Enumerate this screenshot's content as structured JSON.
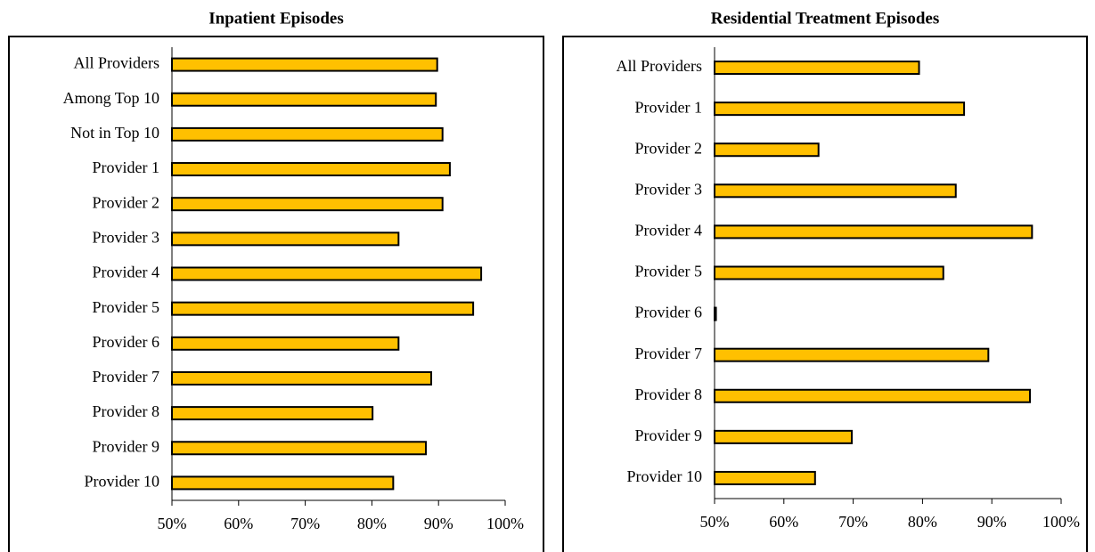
{
  "chart_data": [
    {
      "type": "bar",
      "title": "Inpatient Episodes",
      "categories": [
        "All Providers",
        "Among Top 10",
        "Not in Top 10",
        "Provider 1",
        "Provider 2",
        "Provider 3",
        "Provider 4",
        "Provider 5",
        "Provider 6",
        "Provider 7",
        "Provider 8",
        "Provider 9",
        "Provider 10"
      ],
      "values": [
        89.8,
        89.6,
        90.6,
        91.7,
        90.6,
        84.0,
        96.4,
        95.2,
        84.0,
        88.9,
        80.1,
        88.1,
        83.2
      ],
      "color": "#ffc000",
      "xlim": [
        50,
        100
      ],
      "xticks": [
        {
          "value": 50,
          "label": "50%"
        },
        {
          "value": 60,
          "label": "60%"
        },
        {
          "value": 70,
          "label": "70%"
        },
        {
          "value": 80,
          "label": "80%"
        },
        {
          "value": 90,
          "label": "90%"
        },
        {
          "value": 100,
          "label": "100%"
        }
      ]
    },
    {
      "type": "bar",
      "title": "Residential Treatment Episodes",
      "categories": [
        "All Providers",
        "Provider 1",
        "Provider 2",
        "Provider 3",
        "Provider 4",
        "Provider 5",
        "Provider 6",
        "Provider 7",
        "Provider 8",
        "Provider 9",
        "Provider 10"
      ],
      "values": [
        79.5,
        86.0,
        65.0,
        84.8,
        95.8,
        83.0,
        50.2,
        89.5,
        95.5,
        69.8,
        64.5
      ],
      "color": "#ffc000",
      "xlim": [
        50,
        100
      ],
      "xticks": [
        {
          "value": 50,
          "label": "50%"
        },
        {
          "value": 60,
          "label": "60%"
        },
        {
          "value": 70,
          "label": "70%"
        },
        {
          "value": 80,
          "label": "80%"
        },
        {
          "value": 90,
          "label": "90%"
        },
        {
          "value": 100,
          "label": "100%"
        }
      ]
    }
  ]
}
